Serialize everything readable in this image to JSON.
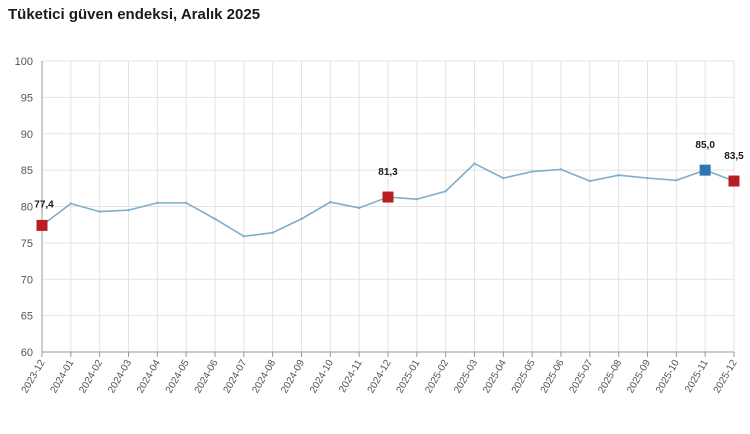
{
  "chart_data": {
    "type": "line",
    "title": "Tüketici güven endeksi, Aralık 2025",
    "xlabel": "",
    "ylabel": "",
    "ylim": [
      60,
      100
    ],
    "yticks": [
      60,
      65,
      70,
      75,
      80,
      85,
      90,
      95,
      100
    ],
    "grid": true,
    "categories": [
      "2023-12",
      "2024-01",
      "2024-02",
      "2024-03",
      "2024-04",
      "2024-05",
      "2024-06",
      "2024-07",
      "2024-08",
      "2024-09",
      "2024-10",
      "2024-11",
      "2024-12",
      "2025-01",
      "2025-02",
      "2025-03",
      "2025-04",
      "2025-05",
      "2025-06",
      "2025-07",
      "2025-08",
      "2025-09",
      "2025-10",
      "2025-11",
      "2025-12"
    ],
    "series": [
      {
        "values": [
          77.4,
          80.4,
          79.3,
          79.5,
          80.5,
          80.5,
          78.3,
          75.9,
          76.4,
          78.3,
          80.6,
          79.8,
          81.3,
          81.0,
          82.1,
          85.9,
          83.9,
          84.8,
          85.1,
          83.5,
          84.3,
          83.9,
          83.6,
          85.0,
          83.5
        ],
        "color": "#7faecb"
      }
    ],
    "highlights": [
      {
        "index": 0,
        "label": "77,4",
        "color": "#b81d24"
      },
      {
        "index": 12,
        "label": "81,3",
        "color": "#b81d24"
      },
      {
        "index": 23,
        "label": "85,0",
        "color": "#2e75b6"
      },
      {
        "index": 24,
        "label": "83,5",
        "color": "#b81d24"
      }
    ]
  }
}
